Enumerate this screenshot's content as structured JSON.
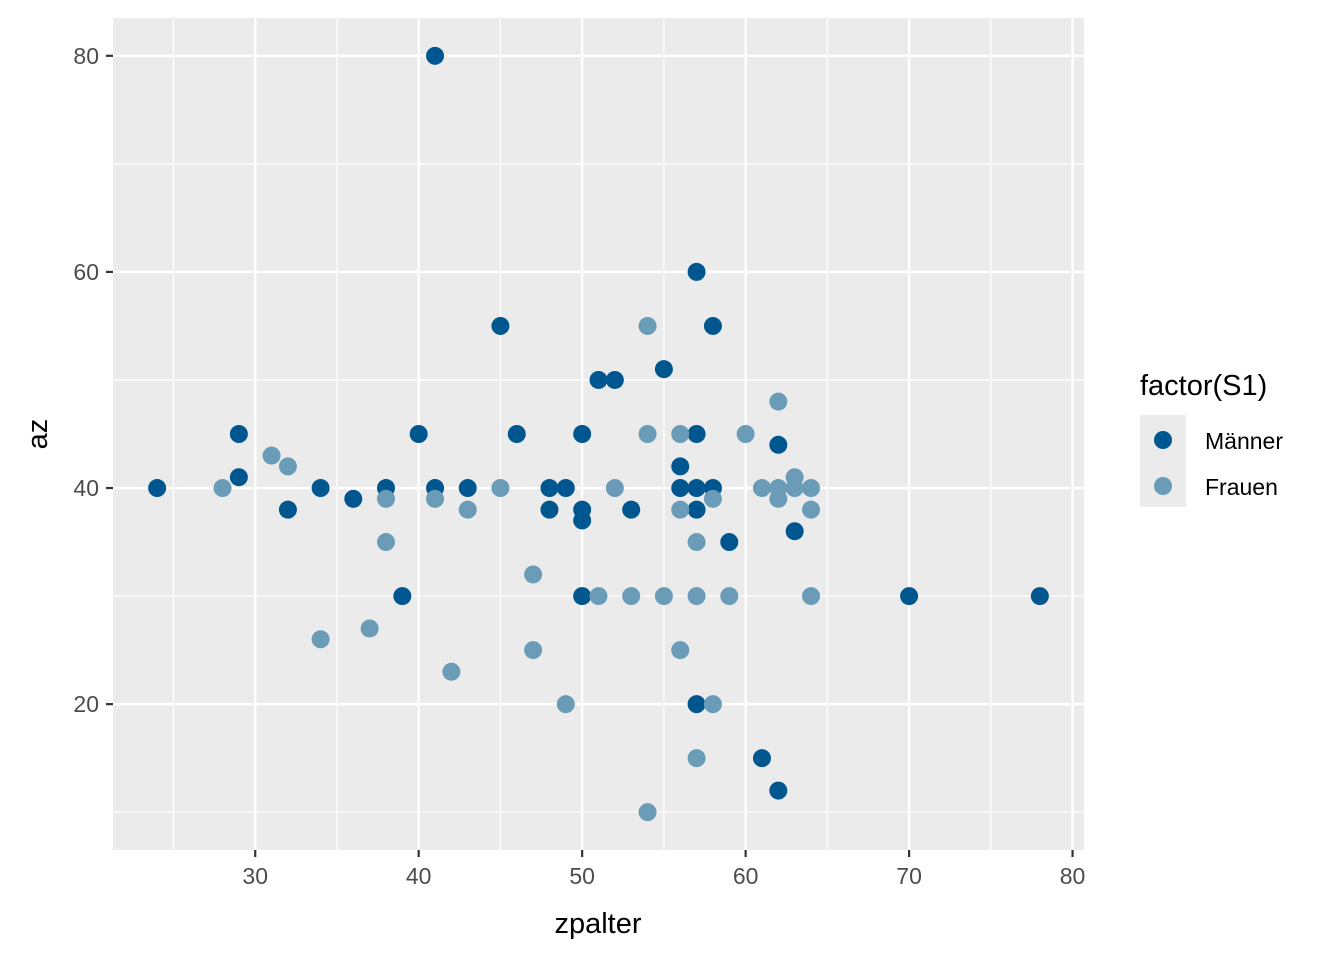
{
  "chart_data": {
    "type": "scatter",
    "xlabel": "zpalter",
    "ylabel": "az",
    "xlim": [
      21.3,
      80.7
    ],
    "ylim": [
      6.5,
      83.5
    ],
    "x_major_ticks": [
      30,
      40,
      50,
      60,
      70,
      80
    ],
    "x_minor_ticks": [
      25,
      35,
      45,
      55,
      65,
      75
    ],
    "y_major_ticks": [
      20,
      40,
      60,
      80
    ],
    "y_minor_ticks": [
      10,
      30,
      50,
      70
    ],
    "x_tick_labels": [
      "30",
      "40",
      "50",
      "60",
      "70",
      "80"
    ],
    "y_tick_labels": [
      "20",
      "40",
      "60",
      "80"
    ],
    "grid": true,
    "legend": {
      "title": "factor(S1)",
      "placement": "right"
    },
    "series": [
      {
        "name": "Männer",
        "color": "#00568f",
        "points": [
          [
            24,
            40
          ],
          [
            29,
            45
          ],
          [
            29,
            41
          ],
          [
            32,
            38
          ],
          [
            34,
            40
          ],
          [
            36,
            39
          ],
          [
            38,
            40
          ],
          [
            39,
            30
          ],
          [
            40,
            45
          ],
          [
            41,
            80
          ],
          [
            41,
            40
          ],
          [
            43,
            40
          ],
          [
            45,
            55
          ],
          [
            46,
            45
          ],
          [
            48,
            40
          ],
          [
            48,
            38
          ],
          [
            49,
            40
          ],
          [
            50,
            45
          ],
          [
            50,
            38
          ],
          [
            50,
            37
          ],
          [
            50,
            30
          ],
          [
            51,
            50
          ],
          [
            52,
            50
          ],
          [
            53,
            38
          ],
          [
            55,
            51
          ],
          [
            56,
            42
          ],
          [
            56,
            40
          ],
          [
            57,
            60
          ],
          [
            57,
            45
          ],
          [
            57,
            40
          ],
          [
            57,
            38
          ],
          [
            57,
            20
          ],
          [
            58,
            55
          ],
          [
            58,
            40
          ],
          [
            59,
            35
          ],
          [
            61,
            15
          ],
          [
            62,
            44
          ],
          [
            62,
            12
          ],
          [
            63,
            36
          ],
          [
            70,
            30
          ],
          [
            78,
            30
          ]
        ]
      },
      {
        "name": "Frauen",
        "color": "#6a9cb8",
        "points": [
          [
            28,
            40
          ],
          [
            31,
            43
          ],
          [
            32,
            42
          ],
          [
            34,
            26
          ],
          [
            37,
            27
          ],
          [
            38,
            39
          ],
          [
            38,
            35
          ],
          [
            41,
            39
          ],
          [
            42,
            23
          ],
          [
            43,
            38
          ],
          [
            45,
            40
          ],
          [
            47,
            32
          ],
          [
            47,
            25
          ],
          [
            49,
            20
          ],
          [
            51,
            30
          ],
          [
            52,
            40
          ],
          [
            53,
            30
          ],
          [
            54,
            55
          ],
          [
            54,
            45
          ],
          [
            54,
            10
          ],
          [
            55,
            30
          ],
          [
            56,
            45
          ],
          [
            56,
            38
          ],
          [
            56,
            25
          ],
          [
            57,
            35
          ],
          [
            57,
            30
          ],
          [
            57,
            15
          ],
          [
            58,
            39
          ],
          [
            58,
            20
          ],
          [
            59,
            30
          ],
          [
            60,
            45
          ],
          [
            61,
            40
          ],
          [
            62,
            48
          ],
          [
            62,
            40
          ],
          [
            62,
            39
          ],
          [
            63,
            41
          ],
          [
            63,
            40
          ],
          [
            64,
            40
          ],
          [
            64,
            38
          ],
          [
            64,
            30
          ]
        ]
      }
    ]
  }
}
